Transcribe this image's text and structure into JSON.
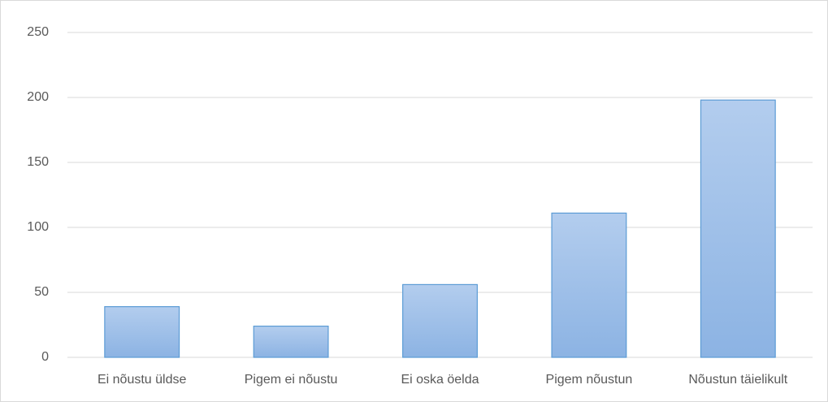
{
  "chart_data": {
    "type": "bar",
    "categories": [
      "Ei nõustu üldse",
      "Pigem ei nõustu",
      "Ei oska öelda",
      "Pigem nõustun",
      "Nõustun täielikult"
    ],
    "values": [
      39,
      24,
      56,
      111,
      198
    ],
    "color": "#5b9bd5",
    "ylim": [
      0,
      250
    ],
    "yticks": [
      0,
      50,
      100,
      150,
      200,
      250
    ],
    "grid": true
  }
}
